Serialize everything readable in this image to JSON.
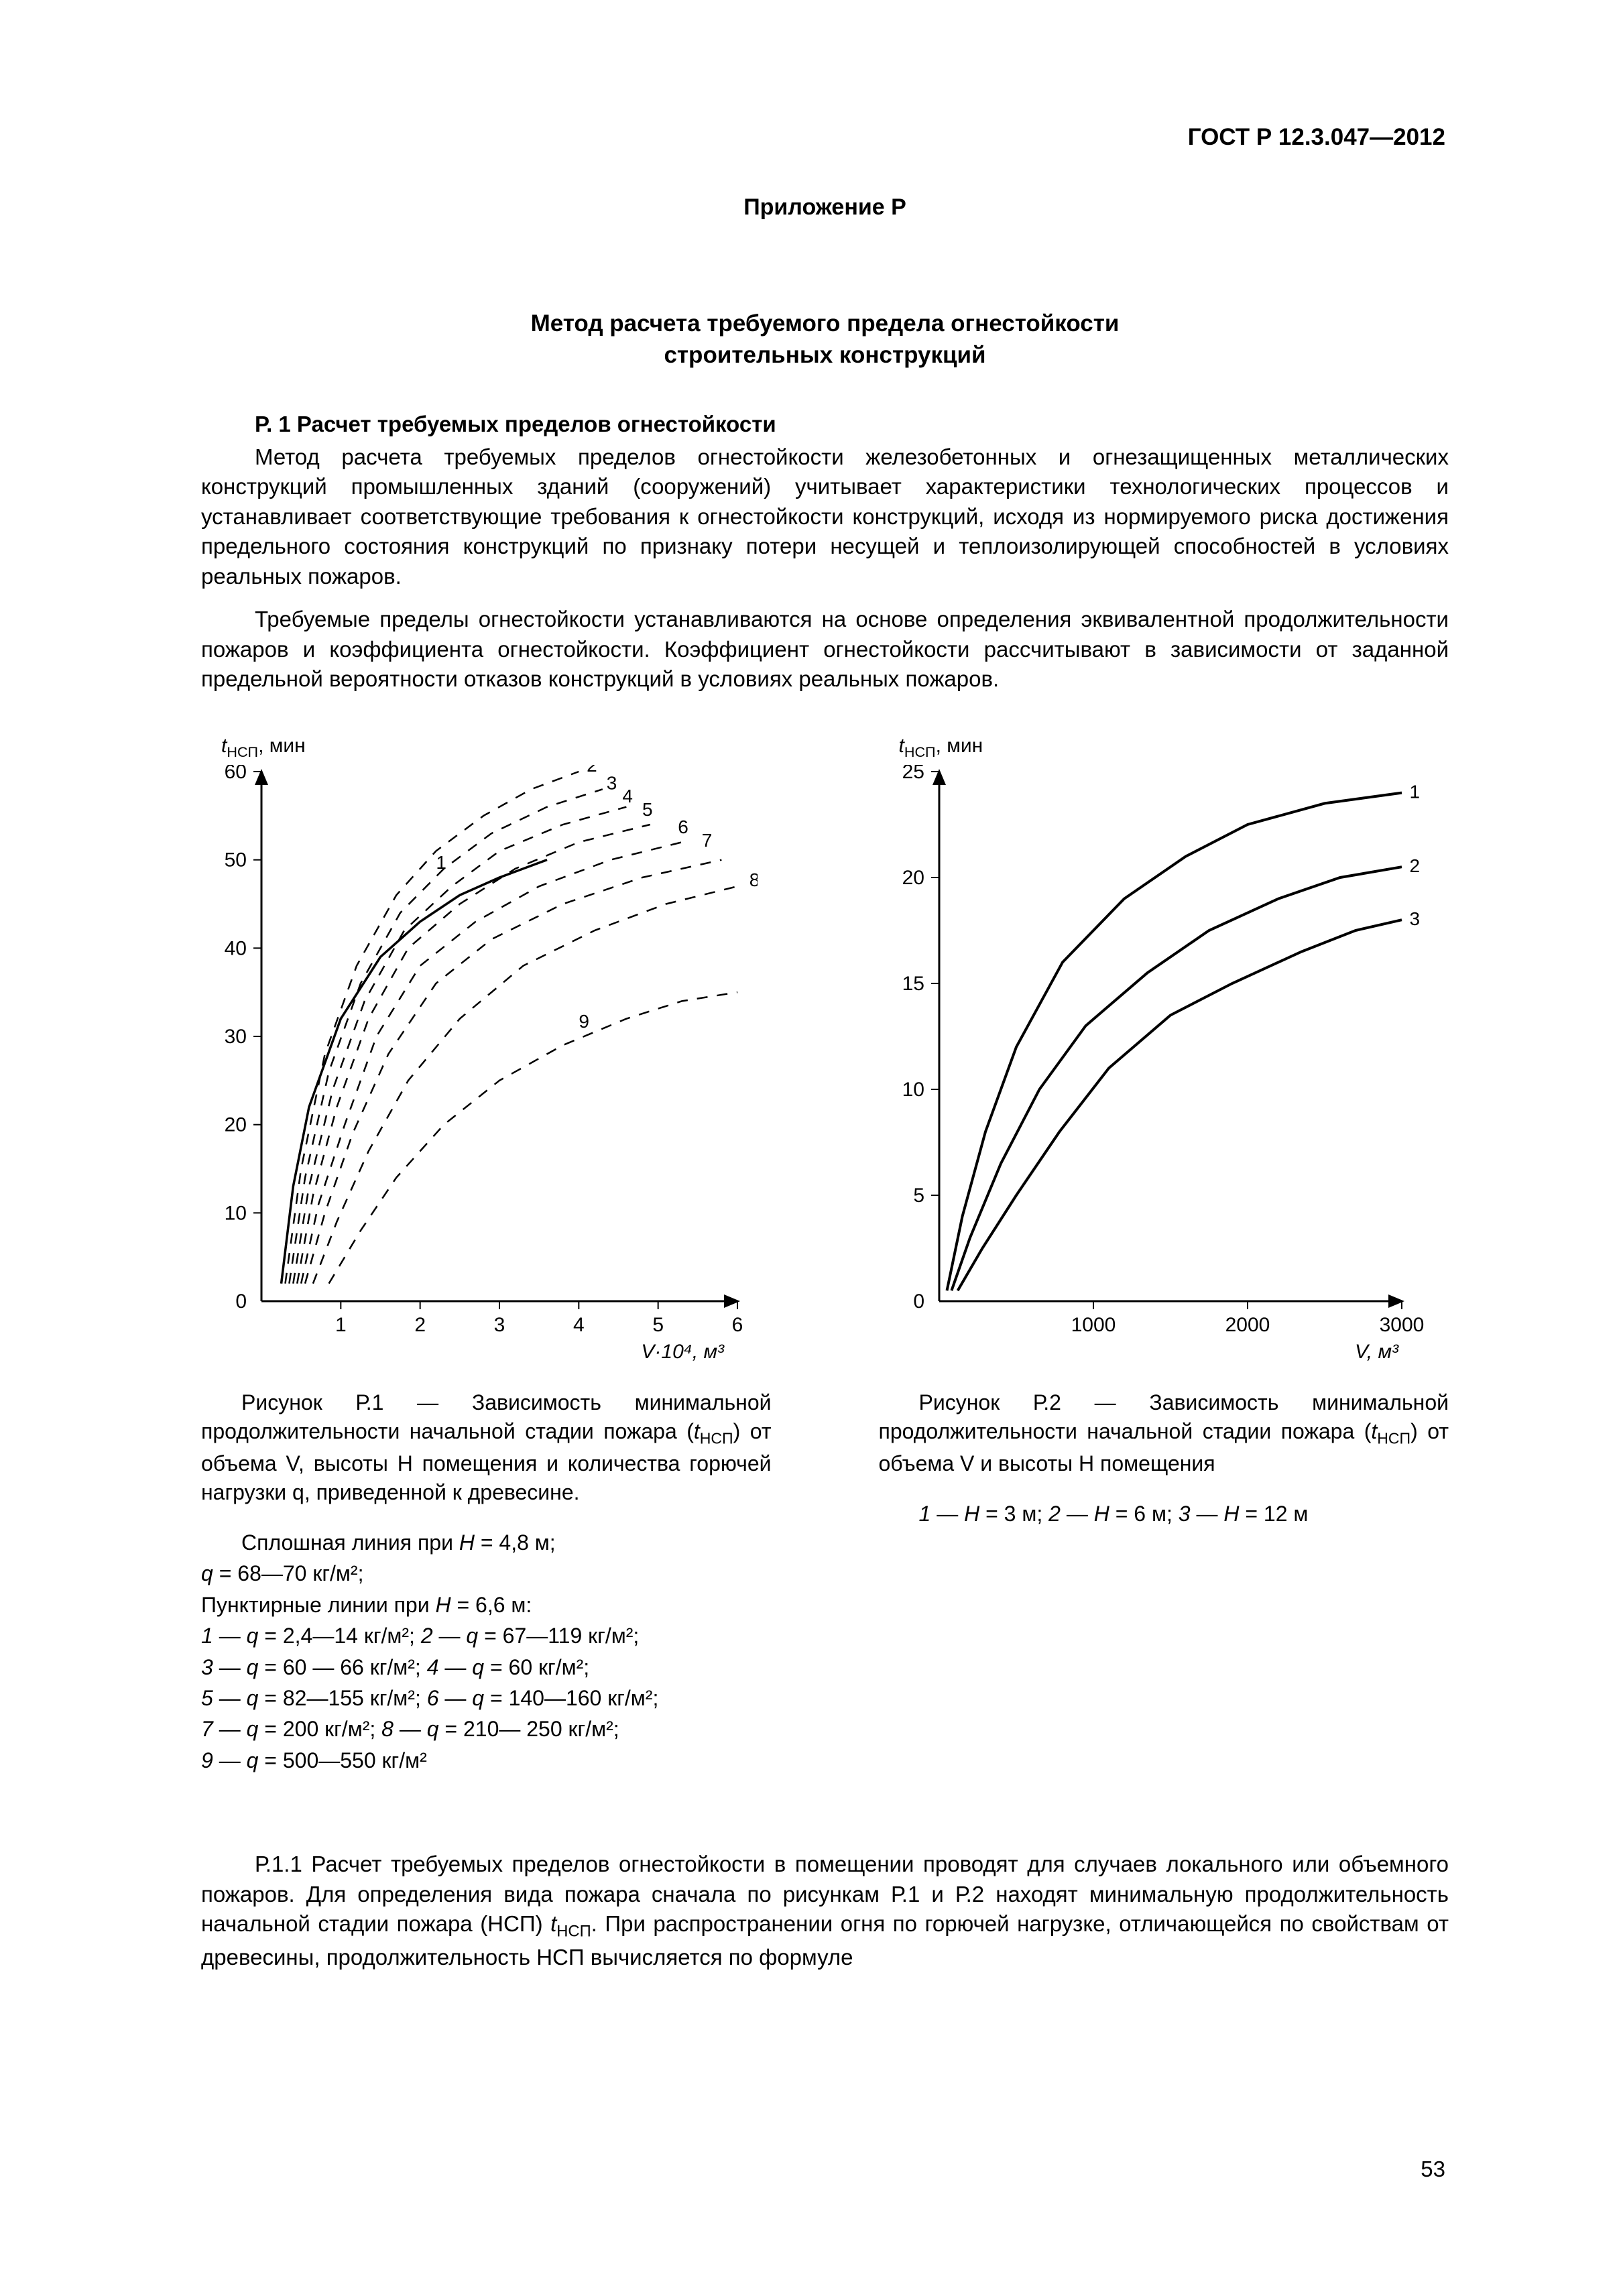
{
  "doc_code": "ГОСТ Р 12.3.047—2012",
  "annex_label": "Приложение Р",
  "title_l1": "Метод расчета требуемого предела огнестойкости",
  "title_l2": "строительных конструкций",
  "section_head": "Р. 1 Расчет требуемых пределов огнестойкости",
  "para1": "Метод расчета требуемых пределов огнестойкости железобетонных и огнезащищенных металлических конструкций промышленных зданий (сооружений) учитывает характеристики технологических процессов и устанавливает соответствующие требования к огнестойкости конструкций, исходя из нормируемого риска достижения предельного состояния конструкций по признаку потери несущей и теплоизолирующей способностей в условиях реальных пожаров.",
  "para2": "Требуемые пределы огнестойкости устанавливаются на основе определения эквивалентной продолжительности пожаров и коэффициента огнестойкости. Коэффициент огнестойкости рассчитывают в зависимости от заданной предельной вероятности отказов конструкций в условиях реальных пожаров.",
  "post_para_pre": "Р.1.1 Расчет требуемых пределов огнестойкости в помещении проводят для случаев локального или объемного пожаров. Для определения вида пожара сначала по рисункам Р.1 и Р.2 находят минимальную продолжительность начальной стадии пожара (НСП) ",
  "post_para_post": ". При распространении огня по горючей нагрузке, отличающейся по свойствам от древесины, продолжительность НСП вычисляется по формуле",
  "page_number": "53",
  "fig1": {
    "axis_y_label_pre": "t",
    "axis_y_label_sub": "НСП",
    "axis_y_label_unit": ", мин",
    "axis_x_label": "V·10⁴, м³",
    "y_ticks": [
      "0",
      "10",
      "20",
      "30",
      "40",
      "50",
      "60"
    ],
    "x_ticks": [
      "1",
      "2",
      "3",
      "4",
      "5",
      "6"
    ],
    "curve_labels": [
      "1",
      "2",
      "3",
      "4",
      "5",
      "6",
      "7",
      "8",
      "9"
    ],
    "caption_pre": "Рисунок Р.1 — Зависимость минимальной продолжительности начальной стадии пожара (",
    "caption_post": ") от объема V, высоты H помещения  и количества горючей нагрузки q, приведенной к древесине.",
    "legend_lines": [
      {
        "indent": true,
        "html": "Сплошная линия при <span class='ital'>H</span> = 4,8 м;"
      },
      {
        "html": "<span class='ital'>q</span>  = 68—70 кг/м²;"
      },
      {
        "html": "Пунктирные линии при <span class='ital'>H</span> = 6,6 м:"
      },
      {
        "html": "<span class='ital'>1</span> — <span class='ital'>q</span> = 2,4—14 кг/м²; <span class='ital'>2</span> — <span class='ital'>q</span> = 67—119 кг/м²;"
      },
      {
        "html": "<span class='ital'>3</span> — <span class='ital'>q</span>  =  60 — 66 кг/м²;  <span class='ital'>4</span> — <span class='ital'>q</span> = 60 кг/м²;"
      },
      {
        "html": "<span class='ital'>5</span> — <span class='ital'>q</span> = 82—155 кг/м²; <span class='ital'>6</span> — <span class='ital'>q</span> = 140—160 кг/м²;"
      },
      {
        "html": "<span class='ital'>7</span> — <span class='ital'>q</span> = 200 кг/м²; <span class='ital'>8</span> — <span class='ital'>q</span> = 210— 250 кг/м²;"
      },
      {
        "html": "<span class='ital'>9</span> — <span class='ital'>q</span> = 500—550 кг/м²"
      }
    ],
    "chart": {
      "type": "line",
      "background_color": "#ffffff",
      "axis_color": "#000000",
      "line_color": "#000000",
      "line_width": 3.5,
      "tick_fontsize": 30,
      "xlim": [
        0,
        6
      ],
      "ylim": [
        0,
        60
      ],
      "solid_curve": [
        [
          0.25,
          2
        ],
        [
          0.4,
          13
        ],
        [
          0.6,
          22
        ],
        [
          1.0,
          32
        ],
        [
          1.5,
          39
        ],
        [
          2.0,
          43
        ],
        [
          2.5,
          46
        ],
        [
          3.0,
          48
        ],
        [
          3.6,
          50
        ]
      ],
      "dashed_curves": [
        {
          "label": "2",
          "pts": [
            [
              0.3,
              2
            ],
            [
              0.5,
              15
            ],
            [
              0.8,
              28
            ],
            [
              1.2,
              38
            ],
            [
              1.7,
              46
            ],
            [
              2.2,
              51
            ],
            [
              2.8,
              55
            ],
            [
              3.4,
              58
            ],
            [
              4.0,
              60
            ]
          ]
        },
        {
          "label": "3",
          "pts": [
            [
              0.35,
              2
            ],
            [
              0.55,
              14
            ],
            [
              0.85,
              26
            ],
            [
              1.25,
              36
            ],
            [
              1.75,
              44
            ],
            [
              2.3,
              49
            ],
            [
              2.9,
              53
            ],
            [
              3.6,
              56
            ],
            [
              4.3,
              58
            ]
          ]
        },
        {
          "label": "4",
          "pts": [
            [
              0.4,
              2
            ],
            [
              0.6,
              13
            ],
            [
              0.9,
              24
            ],
            [
              1.3,
              34
            ],
            [
              1.8,
              42
            ],
            [
              2.4,
              47
            ],
            [
              3.0,
              51
            ],
            [
              3.8,
              54
            ],
            [
              4.6,
              56
            ]
          ]
        },
        {
          "label": "5",
          "pts": [
            [
              0.45,
              2
            ],
            [
              0.65,
              12
            ],
            [
              0.95,
              22
            ],
            [
              1.35,
              32
            ],
            [
              1.85,
              40
            ],
            [
              2.5,
              45
            ],
            [
              3.2,
              49
            ],
            [
              4.0,
              52
            ],
            [
              4.9,
              54
            ]
          ]
        },
        {
          "label": "6",
          "pts": [
            [
              0.5,
              2
            ],
            [
              0.72,
              11
            ],
            [
              1.05,
              20
            ],
            [
              1.45,
              30
            ],
            [
              2.0,
              38
            ],
            [
              2.7,
              43
            ],
            [
              3.5,
              47
            ],
            [
              4.4,
              50
            ],
            [
              5.3,
              52
            ]
          ]
        },
        {
          "label": "7",
          "pts": [
            [
              0.55,
              2
            ],
            [
              0.8,
              10
            ],
            [
              1.15,
              19
            ],
            [
              1.6,
              28
            ],
            [
              2.2,
              36
            ],
            [
              2.9,
              41
            ],
            [
              3.8,
              45
            ],
            [
              4.8,
              48
            ],
            [
              5.8,
              50
            ]
          ]
        },
        {
          "label": "8",
          "pts": [
            [
              0.65,
              2
            ],
            [
              0.95,
              9
            ],
            [
              1.35,
              17
            ],
            [
              1.85,
              25
            ],
            [
              2.5,
              32
            ],
            [
              3.3,
              38
            ],
            [
              4.2,
              42
            ],
            [
              5.1,
              45
            ],
            [
              6.0,
              47
            ]
          ]
        },
        {
          "label": "9",
          "pts": [
            [
              0.85,
              2
            ],
            [
              1.25,
              8
            ],
            [
              1.7,
              14
            ],
            [
              2.3,
              20
            ],
            [
              3.0,
              25
            ],
            [
              3.8,
              29
            ],
            [
              4.6,
              32
            ],
            [
              5.3,
              34
            ],
            [
              6.0,
              35
            ]
          ]
        }
      ],
      "label_positions": {
        "1": [
          2.2,
          49
        ],
        "2": [
          4.1,
          60
        ],
        "3": [
          4.35,
          58
        ],
        "4": [
          4.55,
          56.5
        ],
        "5": [
          4.8,
          55
        ],
        "6": [
          5.25,
          53
        ],
        "7": [
          5.55,
          51.5
        ],
        "8": [
          6.15,
          47
        ],
        "9": [
          4.0,
          31
        ]
      }
    }
  },
  "fig2": {
    "axis_y_label_pre": "t",
    "axis_y_label_sub": "НСП",
    "axis_y_label_unit": ", мин",
    "axis_x_label": "V, м³",
    "y_ticks": [
      "0",
      "5",
      "10",
      "15",
      "20",
      "25"
    ],
    "x_ticks": [
      "1000",
      "2000",
      "3000"
    ],
    "curve_labels": [
      "1",
      "2",
      "3"
    ],
    "caption_pre": "Рисунок Р.2 — Зависимость минимальной продолжительности начальной стадии пожара (",
    "caption_post": ") от объема V и высоты H помещения",
    "legend_line_html": "<span class='ital'>1</span> — <span class='ital'>H</span> = 3 м; <span class='ital'>2</span> — <span class='ital'>H</span> = 6 м; <span class='ital'>3</span> — <span class='ital'>H</span> = 12 м",
    "chart": {
      "type": "line",
      "background_color": "#ffffff",
      "axis_color": "#000000",
      "line_color": "#000000",
      "line_width": 4,
      "tick_fontsize": 30,
      "xlim": [
        0,
        3000
      ],
      "ylim": [
        0,
        25
      ],
      "curves": [
        {
          "label": "1",
          "pts": [
            [
              50,
              0.5
            ],
            [
              150,
              4
            ],
            [
              300,
              8
            ],
            [
              500,
              12
            ],
            [
              800,
              16
            ],
            [
              1200,
              19
            ],
            [
              1600,
              21
            ],
            [
              2000,
              22.5
            ],
            [
              2500,
              23.5
            ],
            [
              3000,
              24
            ]
          ]
        },
        {
          "label": "2",
          "pts": [
            [
              80,
              0.5
            ],
            [
              200,
              3
            ],
            [
              400,
              6.5
            ],
            [
              650,
              10
            ],
            [
              950,
              13
            ],
            [
              1350,
              15.5
            ],
            [
              1750,
              17.5
            ],
            [
              2200,
              19
            ],
            [
              2600,
              20
            ],
            [
              3000,
              20.5
            ]
          ]
        },
        {
          "label": "3",
          "pts": [
            [
              120,
              0.5
            ],
            [
              280,
              2.5
            ],
            [
              500,
              5
            ],
            [
              780,
              8
            ],
            [
              1100,
              11
            ],
            [
              1500,
              13.5
            ],
            [
              1900,
              15
            ],
            [
              2350,
              16.5
            ],
            [
              2700,
              17.5
            ],
            [
              3000,
              18
            ]
          ]
        }
      ],
      "label_positions": {
        "1": [
          3050,
          24
        ],
        "2": [
          3050,
          20.5
        ],
        "3": [
          3050,
          18
        ]
      }
    }
  }
}
